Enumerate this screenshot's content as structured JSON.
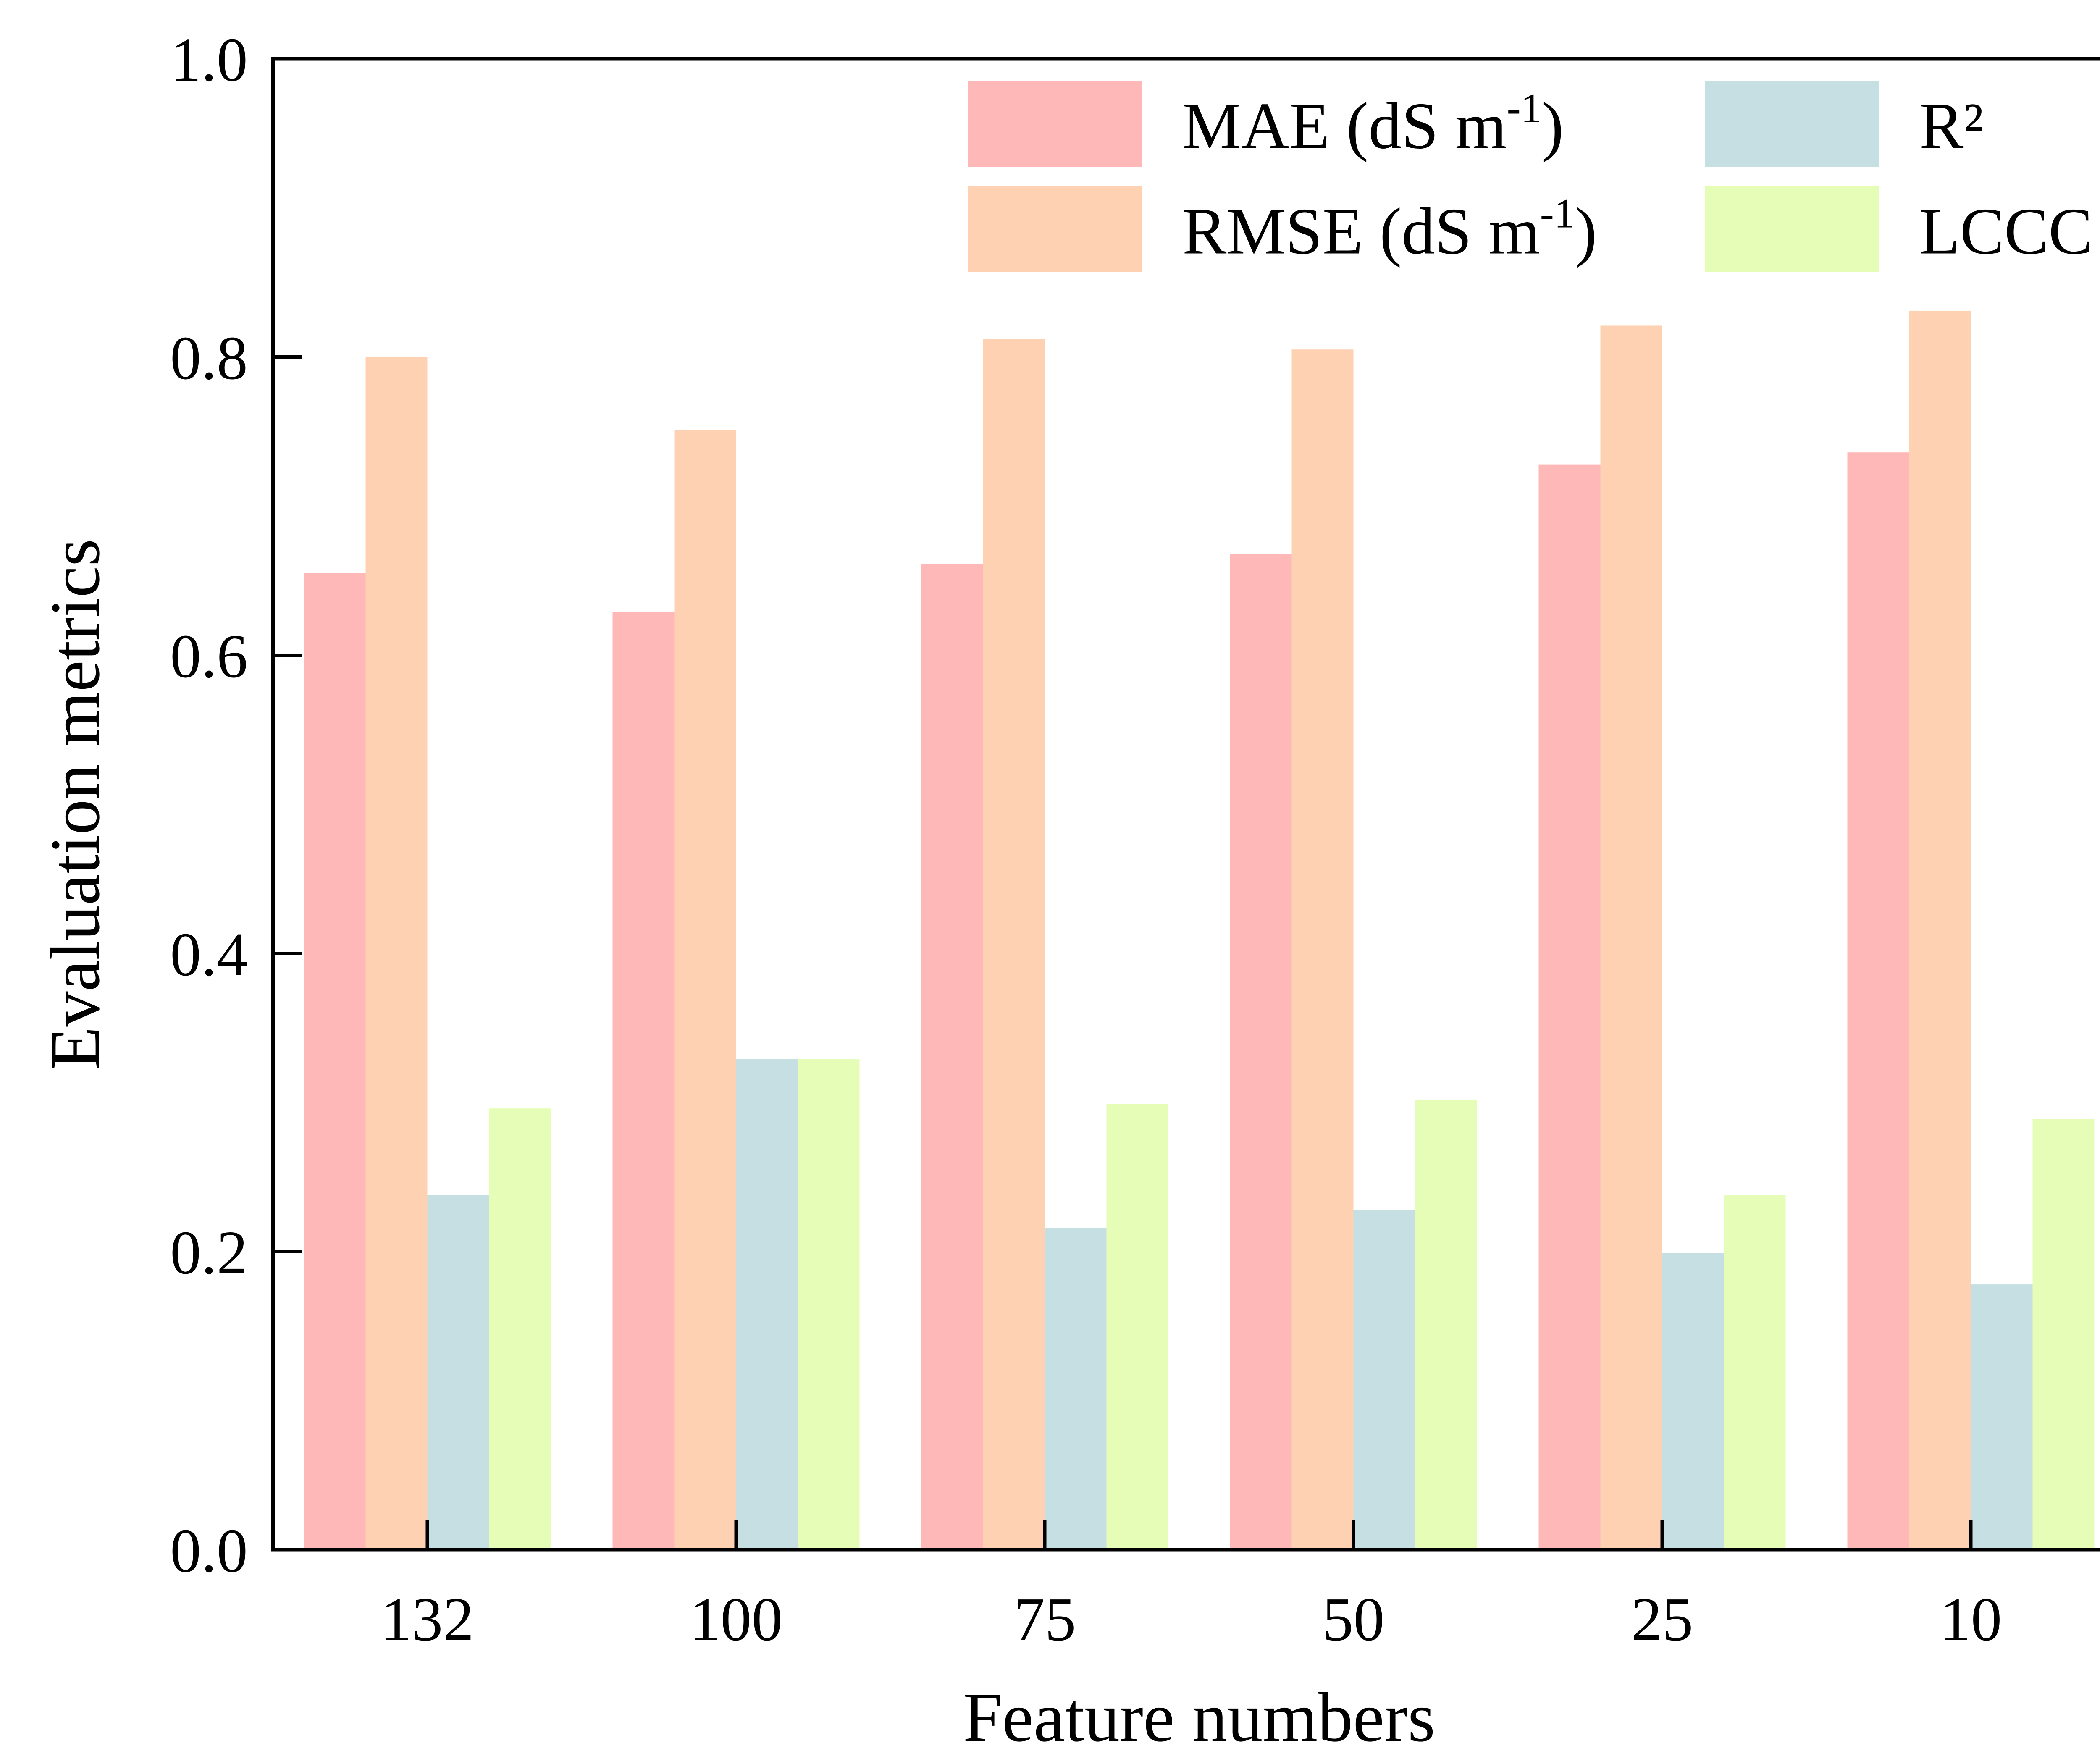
{
  "chart_data": {
    "type": "bar",
    "xlabel": "Feature numbers",
    "ylabel": "Evaluation metrics",
    "ylim": [
      0,
      1.0
    ],
    "yticks": [
      "0.0",
      "0.2",
      "0.4",
      "0.6",
      "0.8",
      "1.0"
    ],
    "categories": [
      "132",
      "100",
      "75",
      "50",
      "25",
      "10"
    ],
    "grid": false,
    "legend_position": "top-right",
    "series": [
      {
        "name": "MAE (dS m",
        "name_superscript": "-1",
        "name_suffix": ")",
        "color": "#FFB8B8",
        "values": [
          0.655,
          0.629,
          0.661,
          0.668,
          0.728,
          0.736
        ]
      },
      {
        "name": "RMSE (dS m",
        "name_superscript": "-1",
        "name_suffix": ")",
        "color": "#FED1B3",
        "values": [
          0.8,
          0.751,
          0.812,
          0.805,
          0.821,
          0.831
        ]
      },
      {
        "name": "R²",
        "color": "#C5DFE3",
        "values": [
          0.238,
          0.329,
          0.216,
          0.228,
          0.199,
          0.178
        ]
      },
      {
        "name": "LCCC",
        "color": "#E6FDB8",
        "values": [
          0.296,
          0.329,
          0.299,
          0.302,
          0.238,
          0.289
        ]
      }
    ]
  }
}
